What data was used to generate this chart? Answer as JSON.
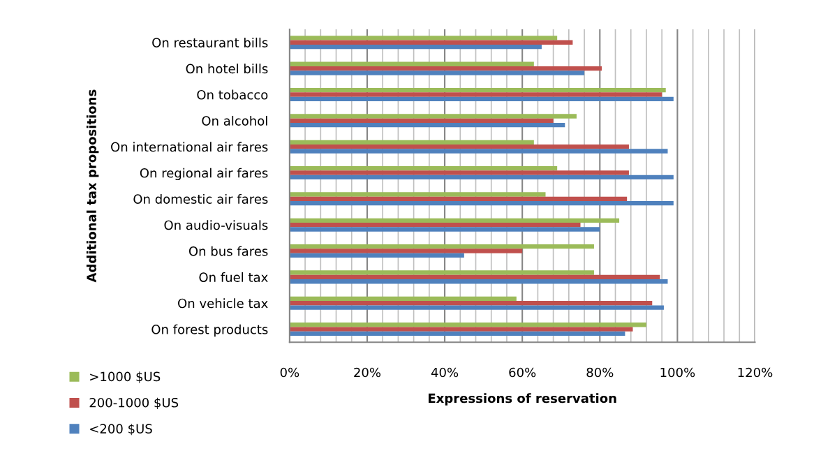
{
  "chart_data": {
    "type": "bar",
    "orientation": "horizontal",
    "xlabel": "Expressions of reservation",
    "ylabel": "Additional tax propositions",
    "categories": [
      "On restaurant bills",
      "On hotel bills",
      "On tobacco",
      "On alcohol",
      "On international air fares",
      "On regional air fares",
      "On domestic air fares",
      "On audio-visuals",
      "On bus fares",
      "On fuel tax",
      "On vehicle tax",
      "On forest products"
    ],
    "series": [
      {
        "name": ">1000 $US",
        "color": "#9bbb59",
        "values": [
          69,
          63,
          97,
          74,
          63,
          69,
          66,
          85,
          78.5,
          78.5,
          58.5,
          92
        ]
      },
      {
        "name": "200-1000 $US",
        "color": "#c0504d",
        "values": [
          73,
          80.5,
          96,
          68,
          87.5,
          87.5,
          87,
          75,
          60,
          95.5,
          93.5,
          88.5
        ]
      },
      {
        "name": "<200 $US",
        "color": "#4f81bd",
        "values": [
          65,
          76,
          99,
          71,
          97.5,
          99,
          99,
          80,
          45,
          97.5,
          96.5,
          86.5
        ]
      }
    ],
    "xlim": [
      0,
      120
    ],
    "xticks": [
      {
        "value": 0,
        "label": "0%"
      },
      {
        "value": 4,
        "label": null
      },
      {
        "value": 8,
        "label": null
      },
      {
        "value": 12,
        "label": null
      },
      {
        "value": 16,
        "label": null
      },
      {
        "value": 20,
        "label": "20%"
      },
      {
        "value": 24,
        "label": null
      },
      {
        "value": 28,
        "label": null
      },
      {
        "value": 32,
        "label": null
      },
      {
        "value": 36,
        "label": null
      },
      {
        "value": 40,
        "label": "40%"
      },
      {
        "value": 44,
        "label": null
      },
      {
        "value": 48,
        "label": null
      },
      {
        "value": 52,
        "label": null
      },
      {
        "value": 56,
        "label": null
      },
      {
        "value": 60,
        "label": "60%"
      },
      {
        "value": 64,
        "label": null
      },
      {
        "value": 68,
        "label": null
      },
      {
        "value": 72,
        "label": null
      },
      {
        "value": 76,
        "label": null
      },
      {
        "value": 80,
        "label": "80%"
      },
      {
        "value": 84,
        "label": null
      },
      {
        "value": 88,
        "label": null
      },
      {
        "value": 92,
        "label": null
      },
      {
        "value": 96,
        "label": null
      },
      {
        "value": 100,
        "label": "100%"
      },
      {
        "value": 104,
        "label": null
      },
      {
        "value": 108,
        "label": null
      },
      {
        "value": 112,
        "label": null
      },
      {
        "value": 116,
        "label": null
      },
      {
        "value": 120,
        "label": "120%"
      }
    ],
    "grid": "x",
    "legend": "bottom left"
  }
}
